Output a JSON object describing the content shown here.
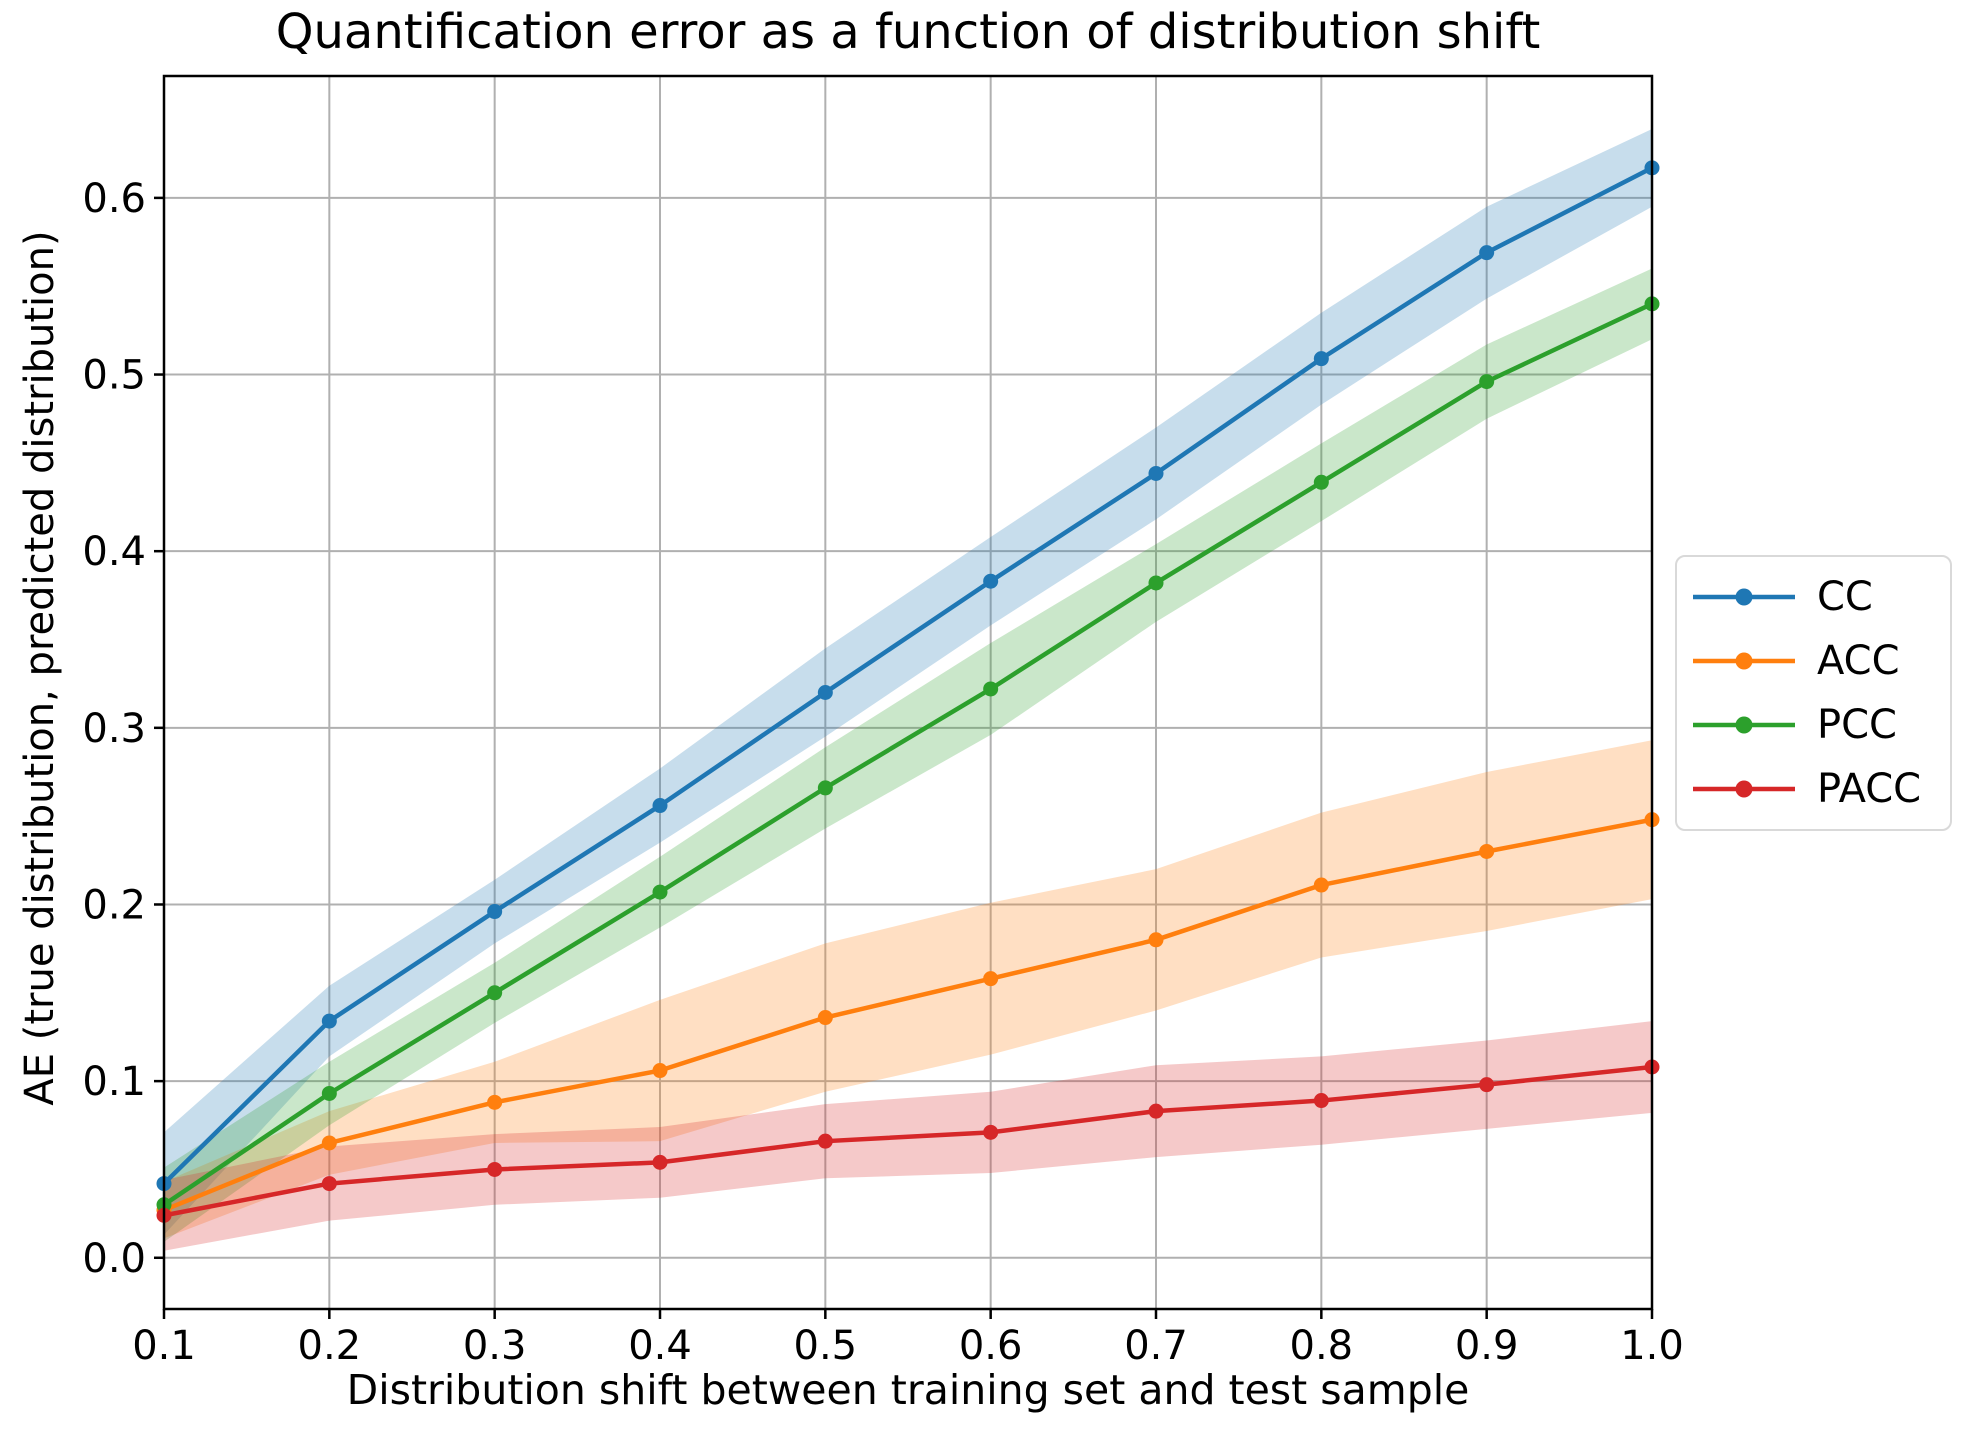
{
  "figure": {
    "background": "#ffffff"
  },
  "chart_data": {
    "type": "line",
    "title": "Quantification error as a function of distribution shift",
    "xlabel": "Distribution shift between training set and test sample",
    "ylabel": "AE (true distribution, predicted distribution)",
    "x": [
      0.1,
      0.2,
      0.3,
      0.4,
      0.5,
      0.6,
      0.7,
      0.8,
      0.9,
      1.0
    ],
    "xtick_labels": [
      "0.1",
      "0.2",
      "0.3",
      "0.4",
      "0.5",
      "0.6",
      "0.7",
      "0.8",
      "0.9",
      "1.0"
    ],
    "ytick_values": [
      0.0,
      0.1,
      0.2,
      0.3,
      0.4,
      0.5,
      0.6
    ],
    "ytick_labels": [
      "0.0",
      "0.1",
      "0.2",
      "0.3",
      "0.4",
      "0.5",
      "0.6"
    ],
    "xlim": [
      0.1,
      1.0
    ],
    "ylim": [
      -0.029,
      0.669
    ],
    "grid": true,
    "grid_color": "#b0b0b0",
    "spine_color": "#000000",
    "band_alpha": 0.25,
    "legend_position": "right-outside",
    "series": [
      {
        "name": "CC",
        "color": "#1f77b4",
        "values": [
          0.042,
          0.134,
          0.196,
          0.256,
          0.32,
          0.383,
          0.444,
          0.509,
          0.569,
          0.617
        ],
        "band_halfwidth": [
          0.029,
          0.02,
          0.018,
          0.021,
          0.025,
          0.025,
          0.026,
          0.026,
          0.026,
          0.022
        ]
      },
      {
        "name": "ACC",
        "color": "#ff7f0e",
        "values": [
          0.027,
          0.065,
          0.088,
          0.106,
          0.136,
          0.158,
          0.18,
          0.211,
          0.23,
          0.248
        ],
        "band_halfwidth": [
          0.016,
          0.018,
          0.023,
          0.04,
          0.042,
          0.043,
          0.04,
          0.041,
          0.045,
          0.045
        ]
      },
      {
        "name": "PCC",
        "color": "#2ca02c",
        "values": [
          0.03,
          0.093,
          0.15,
          0.207,
          0.266,
          0.322,
          0.382,
          0.439,
          0.496,
          0.54
        ],
        "band_halfwidth": [
          0.021,
          0.018,
          0.017,
          0.02,
          0.023,
          0.026,
          0.022,
          0.022,
          0.021,
          0.02
        ]
      },
      {
        "name": "PACC",
        "color": "#d62728",
        "values": [
          0.024,
          0.042,
          0.05,
          0.054,
          0.066,
          0.071,
          0.083,
          0.089,
          0.098,
          0.108
        ],
        "band_halfwidth": [
          0.02,
          0.021,
          0.02,
          0.02,
          0.021,
          0.023,
          0.026,
          0.025,
          0.025,
          0.026
        ]
      }
    ]
  }
}
